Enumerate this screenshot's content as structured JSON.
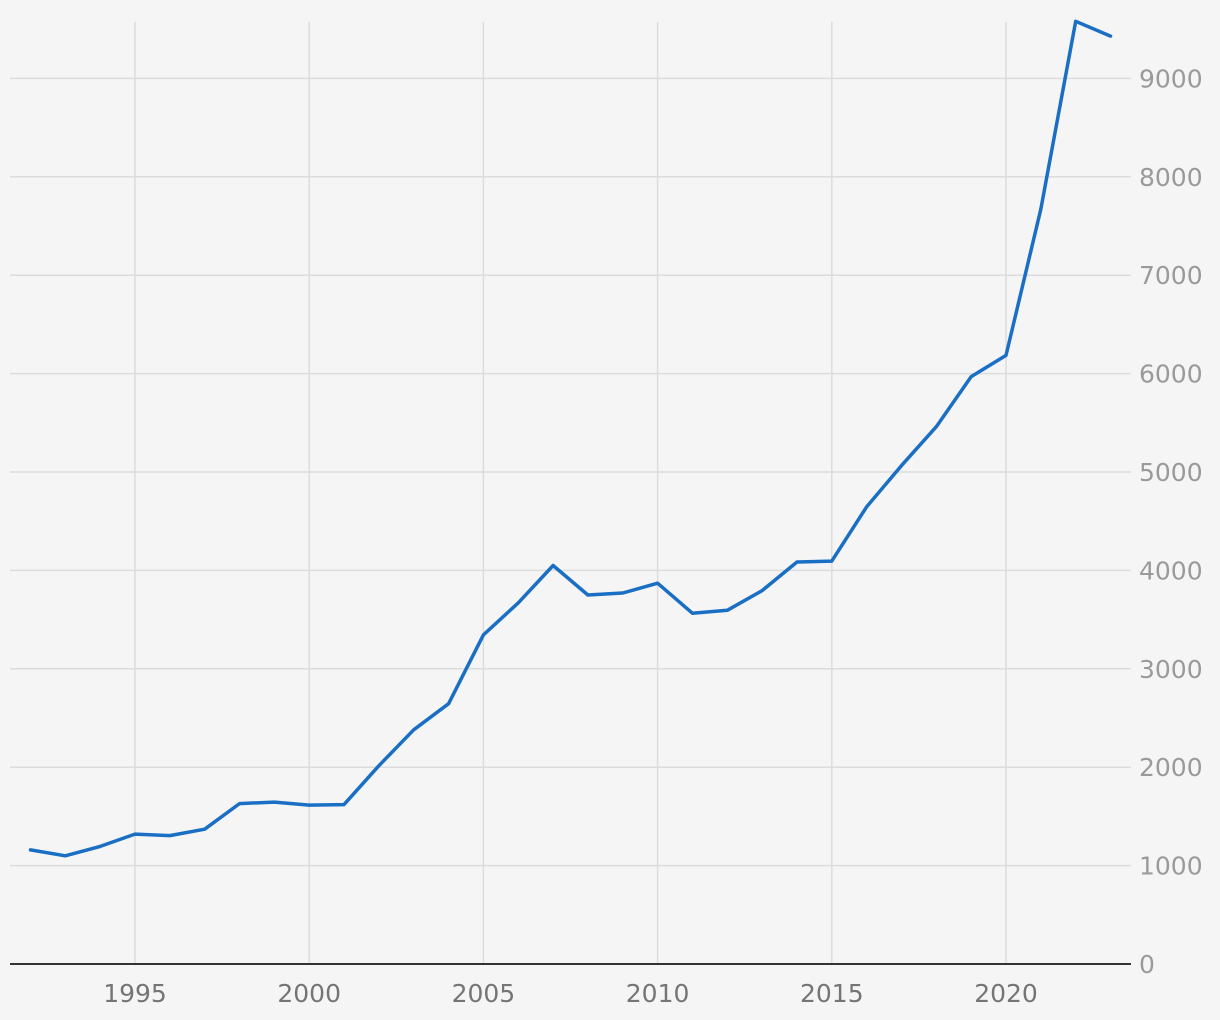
{
  "chart_data": {
    "type": "line",
    "title": "",
    "xlabel": "",
    "ylabel": "",
    "xlim": [
      1991.5,
      2023.5
    ],
    "ylim": [
      0,
      9600
    ],
    "x_ticks": [
      1995,
      2000,
      2005,
      2010,
      2015,
      2020
    ],
    "y_ticks": [
      0,
      1000,
      2000,
      3000,
      4000,
      5000,
      6000,
      7000,
      8000,
      9000
    ],
    "y_axis_position": "right",
    "grid": true,
    "colors": {
      "line": "#1a6fc4",
      "grid": "#dcdcdc",
      "background": "#f5f5f5"
    },
    "series": [
      {
        "x": [
          1992,
          1993,
          1994,
          1995,
          1996,
          1997,
          1998,
          1999,
          2000,
          2001,
          2002,
          2003,
          2004,
          2005,
          2006,
          2007,
          2008,
          2009,
          2010,
          2011,
          2012,
          2013,
          2014,
          2015,
          2016,
          2017,
          2018,
          2019,
          2020,
          2021,
          2022,
          2023
        ],
        "values": [
          1160,
          1100,
          1195,
          1320,
          1305,
          1370,
          1630,
          1645,
          1615,
          1620,
          2015,
          2380,
          2645,
          3345,
          3670,
          4050,
          3750,
          3770,
          3870,
          3565,
          3595,
          3795,
          4085,
          4095,
          4645,
          5065,
          5460,
          5970,
          6185,
          7670,
          9580,
          9430
        ]
      }
    ]
  }
}
